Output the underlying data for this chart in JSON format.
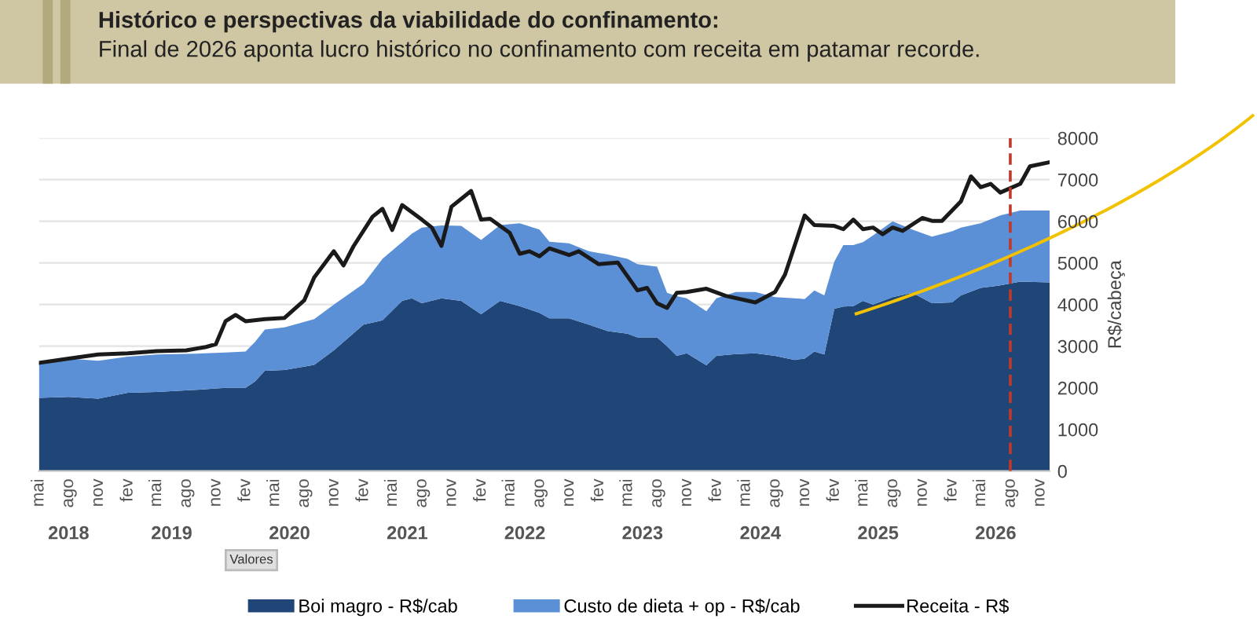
{
  "chart_data": {
    "type": "area",
    "stacked": true,
    "title": "Histórico e perspectivas da viabilidade do confinamento:",
    "subtitle": "Final de 2026 aponta lucro histórico no confinamento com receita em patamar recorde.",
    "ylabel": "R$/cabeça",
    "x": [
      "2018-05",
      "2018-08",
      "2018-11",
      "2019-02",
      "2019-05",
      "2019-09",
      "2019-12",
      "2020-02",
      "2020-03",
      "2020-04",
      "2020-06",
      "2020-09",
      "2020-11",
      "2021-02",
      "2021-04",
      "2021-06",
      "2021-07",
      "2021-08",
      "2021-10",
      "2021-12",
      "2022-02",
      "2022-04",
      "2022-06",
      "2022-08",
      "2022-09",
      "2022-11",
      "2023-01",
      "2023-03",
      "2023-05",
      "2023-06",
      "2023-08",
      "2023-09",
      "2023-10",
      "2023-11",
      "2024-01",
      "2024-02",
      "2024-04",
      "2024-06",
      "2024-08",
      "2024-10",
      "2024-11",
      "2024-12",
      "2025-01",
      "2025-02",
      "2025-03",
      "2025-04",
      "2025-05",
      "2025-06",
      "2025-08",
      "2025-10",
      "2025-12",
      "2026-02",
      "2026-03",
      "2026-05",
      "2026-07",
      "2026-09",
      "2026-12"
    ],
    "series": [
      {
        "name": "Boi magro - R$/cab",
        "color": "#1f4677",
        "values": [
          1760,
          1780,
          1740,
          1880,
          1900,
          1950,
          2000,
          2000,
          2150,
          2410,
          2430,
          2550,
          2900,
          3520,
          3620,
          4090,
          4150,
          4030,
          4150,
          4090,
          3770,
          4090,
          3960,
          3800,
          3670,
          3670,
          3520,
          3360,
          3300,
          3210,
          3210,
          3000,
          2770,
          2830,
          2540,
          2770,
          2810,
          2830,
          2770,
          2670,
          2700,
          2870,
          2800,
          3900,
          3950,
          3960,
          4090,
          4000,
          4180,
          4280,
          4030,
          4050,
          4220,
          4400,
          4460,
          4550,
          4530
        ]
      },
      {
        "name": "Custo de dieta + op - R$/cab",
        "color": "#5b8fd6",
        "values": [
          840,
          920,
          910,
          870,
          900,
          870,
          850,
          870,
          950,
          990,
          1020,
          1100,
          1100,
          980,
          1480,
          1410,
          1550,
          1820,
          1750,
          1800,
          1780,
          1820,
          1990,
          2000,
          1840,
          1800,
          1760,
          1840,
          1800,
          1760,
          1700,
          1280,
          1430,
          1320,
          1300,
          1380,
          1490,
          1470,
          1410,
          1480,
          1430,
          1470,
          1420,
          1130,
          1480,
          1470,
          1410,
          1660,
          1820,
          1520,
          1600,
          1710,
          1630,
          1550,
          1680,
          1710,
          1730
        ]
      },
      {
        "name": "Receita - R$",
        "type": "line",
        "color": "#1a1a1a",
        "x": [
          "2018-05",
          "2018-08",
          "2018-11",
          "2019-02",
          "2019-05",
          "2019-08",
          "2019-10",
          "2019-11",
          "2019-12",
          "2020-01",
          "2020-02",
          "2020-04",
          "2020-06",
          "2020-08",
          "2020-09",
          "2020-11",
          "2020-12",
          "2021-01",
          "2021-03",
          "2021-04",
          "2021-05",
          "2021-06",
          "2021-08",
          "2021-09",
          "2021-10",
          "2021-11",
          "2022-01",
          "2022-02",
          "2022-03",
          "2022-05",
          "2022-06",
          "2022-07",
          "2022-08",
          "2022-09",
          "2022-11",
          "2022-12",
          "2023-02",
          "2023-04",
          "2023-06",
          "2023-07",
          "2023-08",
          "2023-09",
          "2023-10",
          "2023-11",
          "2024-01",
          "2024-03",
          "2024-06",
          "2024-08",
          "2024-09",
          "2024-11",
          "2024-12",
          "2025-02",
          "2025-03",
          "2025-04",
          "2025-05",
          "2025-06",
          "2025-07",
          "2025-08",
          "2025-09",
          "2025-11",
          "2025-12",
          "2026-01",
          "2026-03",
          "2026-04",
          "2026-05",
          "2026-06",
          "2026-07",
          "2026-09",
          "2026-10",
          "2026-12"
        ],
        "values": [
          2600,
          2700,
          2800,
          2830,
          2880,
          2900,
          2980,
          3050,
          3600,
          3750,
          3600,
          3650,
          3680,
          4100,
          4650,
          5280,
          4940,
          5400,
          6110,
          6300,
          5790,
          6390,
          6040,
          5850,
          5410,
          6350,
          6730,
          6040,
          6060,
          5720,
          5220,
          5280,
          5160,
          5350,
          5190,
          5280,
          4970,
          5010,
          4340,
          4400,
          4030,
          3920,
          4280,
          4300,
          4380,
          4210,
          4050,
          4300,
          4720,
          6140,
          5910,
          5890,
          5810,
          6040,
          5810,
          5850,
          5690,
          5850,
          5770,
          6080,
          6010,
          6010,
          6480,
          7080,
          6820,
          6900,
          6690,
          6900,
          7320,
          7420
        ]
      }
    ],
    "xlim": [
      "2018-05",
      "2026-12"
    ],
    "xticks": [
      {
        "value": "2018-05",
        "label": "mai"
      },
      {
        "value": "2018-08",
        "label": "ago"
      },
      {
        "value": "2018-11",
        "label": "nov"
      },
      {
        "value": "2019-02",
        "label": "fev"
      },
      {
        "value": "2019-05",
        "label": "mai"
      },
      {
        "value": "2019-08",
        "label": "ago"
      },
      {
        "value": "2019-11",
        "label": "nov"
      },
      {
        "value": "2020-02",
        "label": "fev"
      },
      {
        "value": "2020-05",
        "label": "mai"
      },
      {
        "value": "2020-08",
        "label": "ago"
      },
      {
        "value": "2020-11",
        "label": "nov"
      },
      {
        "value": "2021-02",
        "label": "fev"
      },
      {
        "value": "2021-05",
        "label": "mai"
      },
      {
        "value": "2021-08",
        "label": "ago"
      },
      {
        "value": "2021-11",
        "label": "nov"
      },
      {
        "value": "2022-02",
        "label": "fev"
      },
      {
        "value": "2022-05",
        "label": "mai"
      },
      {
        "value": "2022-08",
        "label": "ago"
      },
      {
        "value": "2022-11",
        "label": "nov"
      },
      {
        "value": "2023-02",
        "label": "fev"
      },
      {
        "value": "2023-05",
        "label": "mai"
      },
      {
        "value": "2023-08",
        "label": "ago"
      },
      {
        "value": "2023-11",
        "label": "nov"
      },
      {
        "value": "2024-02",
        "label": "fev"
      },
      {
        "value": "2024-05",
        "label": "mai"
      },
      {
        "value": "2024-08",
        "label": "ago"
      },
      {
        "value": "2024-11",
        "label": "nov"
      },
      {
        "value": "2025-02",
        "label": "fev"
      },
      {
        "value": "2025-05",
        "label": "mai"
      },
      {
        "value": "2025-08",
        "label": "ago"
      },
      {
        "value": "2025-11",
        "label": "nov"
      },
      {
        "value": "2026-02",
        "label": "fev"
      },
      {
        "value": "2026-05",
        "label": "mai"
      },
      {
        "value": "2026-08",
        "label": "ago"
      },
      {
        "value": "2026-11",
        "label": "nov"
      }
    ],
    "ylim": [
      0,
      8000
    ],
    "yticks": [
      0,
      1000,
      2000,
      3000,
      4000,
      5000,
      6000,
      7000,
      8000
    ],
    "grid": "y",
    "legend": "bottom",
    "ref_lines": [
      {
        "axis": "x",
        "value": "2026-08",
        "color": "#c0392b",
        "line_style": "dashed"
      }
    ],
    "annotations": [
      "2018",
      "2019",
      "2020",
      "2021",
      "2022",
      "2023",
      "2024",
      "2025",
      "2026",
      "Valores"
    ]
  }
}
